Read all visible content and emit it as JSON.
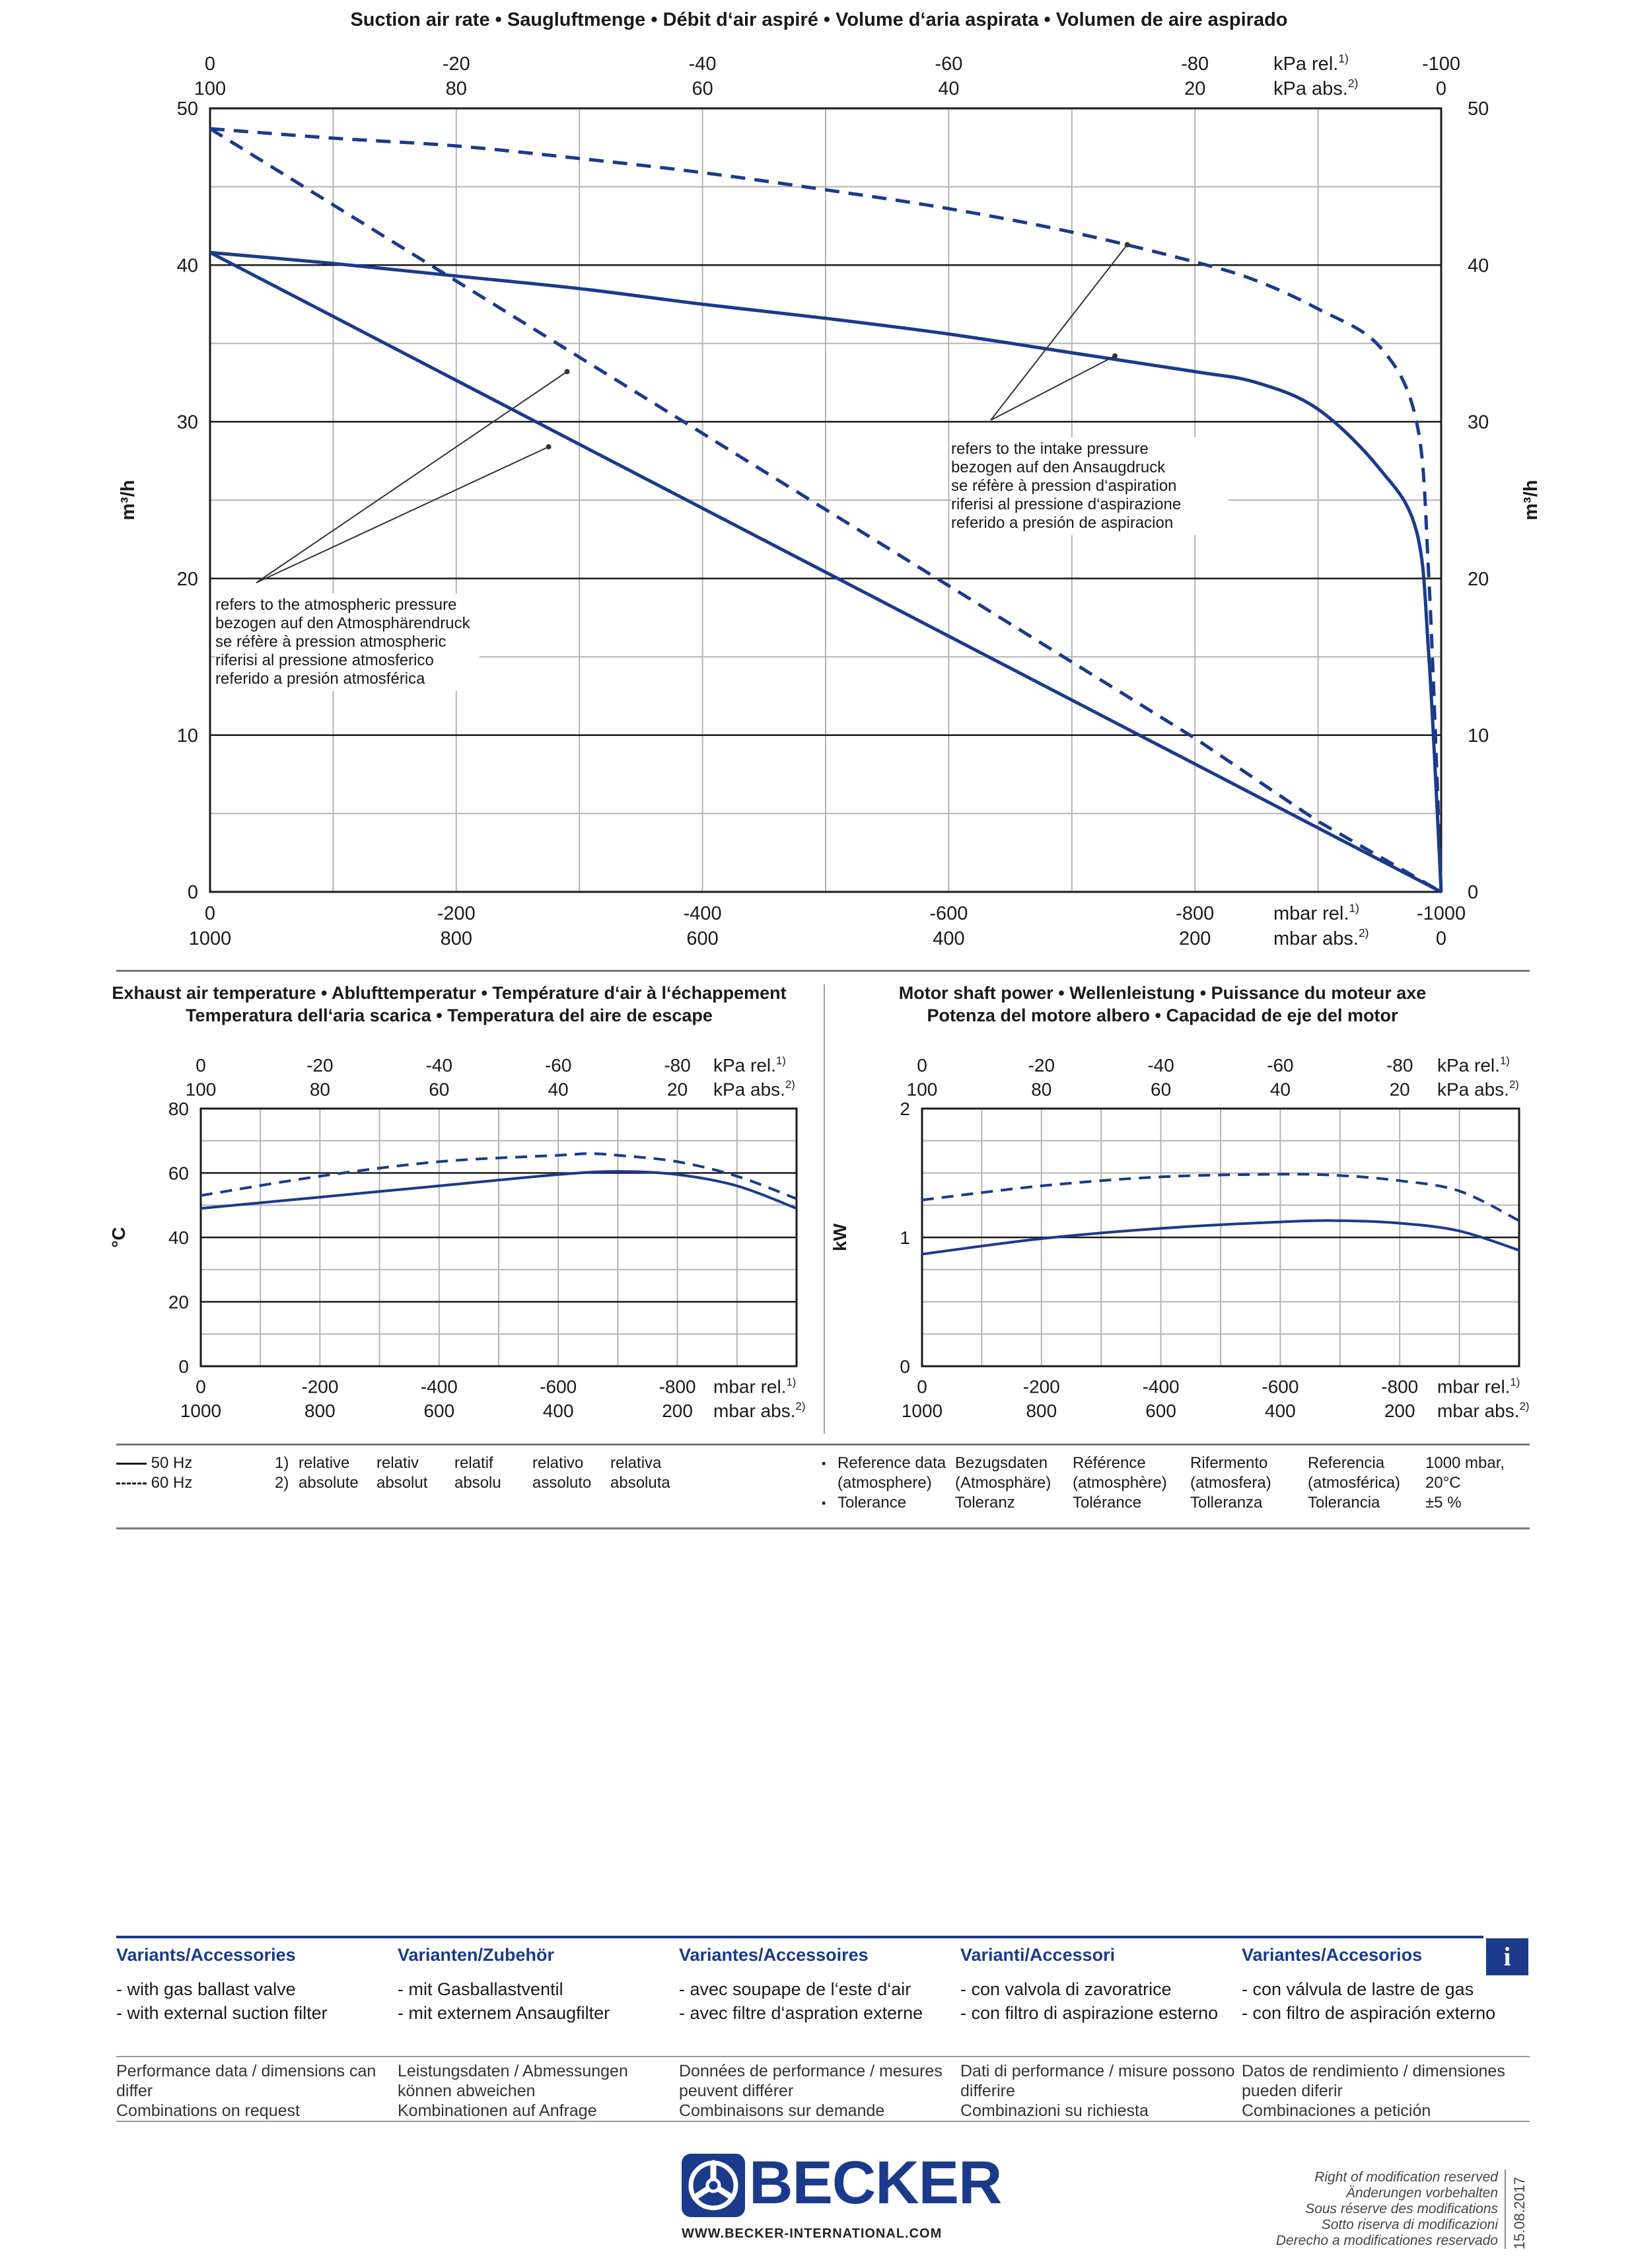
{
  "title": "Suction air rate  •  Saugluftmenge  •  Débit d‘air aspiré  •  Volume d‘aria aspirata  •  Volumen de aire aspirado",
  "main_chart": {
    "top_rel_ticks": [
      "0",
      "-20",
      "-40",
      "-60",
      "-80",
      "-100"
    ],
    "top_abs_ticks": [
      "100",
      "80",
      "60",
      "40",
      "20",
      "0"
    ],
    "top_rel_unit": "kPa rel.",
    "top_rel_sup": "1)",
    "top_abs_unit": "kPa abs.",
    "top_abs_sup": "2)",
    "bottom_rel_ticks": [
      "0",
      "-200",
      "-400",
      "-600",
      "-800",
      "-1000"
    ],
    "bottom_abs_ticks": [
      "1000",
      "800",
      "600",
      "400",
      "200",
      "0"
    ],
    "bottom_rel_unit": "mbar rel.",
    "bottom_abs_unit": "mbar abs.",
    "y_ticks": [
      "0",
      "10",
      "20",
      "30",
      "40",
      "50"
    ],
    "ylabel": "m³/h",
    "annotation_atmospheric": [
      "refers to the atmospheric pressure",
      "bezogen auf den Atmosphärendruck",
      "se réfère à pression atmospheric",
      "riferisi al pressione atmosferico",
      "referido a presión atmosférica"
    ],
    "annotation_intake": [
      "refers to the intake pressure",
      "bezogen auf den Ansaugdruck",
      "se réfère à pression d‘aspiration",
      "riferisi al pressione d‘aspirazione",
      "referido a presión de aspiracion"
    ]
  },
  "temp_chart": {
    "title_line1": "Exhaust air temperature  •  Ablufttemperatur  •  Température d‘air à l‘échappement",
    "title_line2": "Temperatura dell‘aria scarica  •  Temperatura del aire de escape",
    "top_rel_ticks": [
      "0",
      "-20",
      "-40",
      "-60",
      "-80"
    ],
    "top_abs_ticks": [
      "100",
      "80",
      "60",
      "40",
      "20"
    ],
    "top_rel_unit": "kPa rel.",
    "top_abs_unit": "kPa abs.",
    "bottom_rel_ticks": [
      "0",
      "-200",
      "-400",
      "-600",
      "-800"
    ],
    "bottom_abs_ticks": [
      "1000",
      "800",
      "600",
      "400",
      "200"
    ],
    "bottom_rel_unit": "mbar rel.",
    "bottom_abs_unit": "mbar abs.",
    "y_ticks": [
      "0",
      "20",
      "40",
      "60",
      "80"
    ],
    "ylabel": "°C"
  },
  "power_chart": {
    "title_line1": "Motor shaft power  •  Wellenleistung  •  Puissance du moteur axe",
    "title_line2": "Potenza del motore albero  •  Capacidad de eje del motor",
    "top_rel_ticks": [
      "0",
      "-20",
      "-40",
      "-60",
      "-80"
    ],
    "top_abs_ticks": [
      "100",
      "80",
      "60",
      "40",
      "20"
    ],
    "top_rel_unit": "kPa rel.",
    "top_abs_unit": "kPa abs.",
    "bottom_rel_ticks": [
      "0",
      "-200",
      "-400",
      "-600",
      "-800"
    ],
    "bottom_abs_ticks": [
      "1000",
      "800",
      "600",
      "400",
      "200"
    ],
    "bottom_rel_unit": "mbar rel.",
    "bottom_abs_unit": "mbar abs.",
    "y_ticks": [
      "0",
      "1",
      "2"
    ],
    "ylabel": "kW"
  },
  "chart_data": [
    {
      "type": "line",
      "title": "Suction air rate  •  Saugluftmenge  •  Débit d‘air aspiré  •  Volume d‘aria aspirata  •  Volumen de aire aspirado",
      "xlabel": "mbar rel.",
      "ylabel": "m³/h",
      "xlim": [
        0,
        -1000
      ],
      "ylim": [
        0,
        50
      ],
      "grid": true,
      "series": [
        {
          "name": "50 Hz",
          "style": "solid",
          "x": [
            0,
            -100,
            -200,
            -300,
            -400,
            -500,
            -600,
            -700,
            -800,
            -850,
            -900,
            -950,
            -980,
            -990,
            -1000
          ],
          "y": [
            40.8,
            40.1,
            39.3,
            38.5,
            37.5,
            36.6,
            35.6,
            34.4,
            33.2,
            32.5,
            30.8,
            27.0,
            23.0,
            15.0,
            0
          ]
        },
        {
          "name": "60 Hz",
          "style": "dashed",
          "x": [
            0,
            -100,
            -200,
            -300,
            -400,
            -500,
            -600,
            -700,
            -800,
            -850,
            -900,
            -950,
            -980,
            -990,
            -1000
          ],
          "y": [
            48.7,
            48.1,
            47.6,
            46.8,
            45.9,
            44.8,
            43.6,
            42.1,
            40.2,
            39.0,
            37.2,
            34.8,
            30.0,
            20.0,
            0
          ]
        },
        {
          "name": "50 Hz",
          "style": "solid",
          "x": [
            0,
            -1000
          ],
          "y": [
            40.8,
            0
          ]
        },
        {
          "name": "60 Hz",
          "style": "dashed",
          "x": [
            0,
            -500,
            -800,
            -900,
            -1000
          ],
          "y": [
            48.7,
            24.4,
            9.8,
            4.5,
            0
          ]
        }
      ]
    },
    {
      "type": "line",
      "title": "Exhaust air temperature  •  Ablufttemperatur  •  Température d‘air à l‘échappement",
      "xlabel": "mbar rel.",
      "ylabel": "°C",
      "xlim": [
        0,
        -1000
      ],
      "ylim": [
        0,
        80
      ],
      "grid": true,
      "series": [
        {
          "name": "50 Hz",
          "style": "solid",
          "x": [
            0,
            -200,
            -400,
            -600,
            -700,
            -800,
            -900,
            -1000
          ],
          "y": [
            49,
            52.5,
            56,
            59.5,
            60.5,
            59.5,
            56,
            49
          ]
        },
        {
          "name": "60 Hz",
          "style": "dashed",
          "x": [
            0,
            -200,
            -400,
            -600,
            -650,
            -700,
            -800,
            -900,
            -1000
          ],
          "y": [
            53,
            59,
            63.5,
            65.5,
            66,
            65.5,
            63.5,
            59,
            52
          ]
        }
      ]
    },
    {
      "type": "line",
      "title": "Motor shaft power  •  Wellenleistung  •  Puissance du moteur axe",
      "xlabel": "mbar rel.",
      "ylabel": "kW",
      "xlim": [
        0,
        -1000
      ],
      "ylim": [
        0,
        2
      ],
      "grid": true,
      "series": [
        {
          "name": "50 Hz",
          "style": "solid",
          "x": [
            0,
            -200,
            -400,
            -600,
            -700,
            -800,
            -900,
            -1000
          ],
          "y": [
            0.87,
            0.99,
            1.07,
            1.12,
            1.13,
            1.11,
            1.05,
            0.9
          ]
        },
        {
          "name": "60 Hz",
          "style": "dashed",
          "x": [
            0,
            -200,
            -400,
            -600,
            -700,
            -800,
            -900,
            -1000
          ],
          "y": [
            1.29,
            1.4,
            1.47,
            1.49,
            1.48,
            1.44,
            1.36,
            1.13
          ]
        }
      ]
    }
  ],
  "legend": {
    "hz50": "50 Hz",
    "hz60": "60 Hz",
    "fn1_num": "1)",
    "fn2_num": "2)",
    "fn1": [
      "relative",
      "relativ",
      "relatif",
      "relativo",
      "relativa"
    ],
    "fn2": [
      "absolute",
      "absolut",
      "absolu",
      "assoluto",
      "absoluta"
    ]
  },
  "reference": {
    "bullet": "▪",
    "ref_cols": [
      [
        "Reference data",
        "(atmosphere)"
      ],
      [
        "Bezugsdaten",
        "(Atmosphäre)"
      ],
      [
        "Référence",
        "(atmosphère)"
      ],
      [
        "Rifermento",
        "(atmosfera)"
      ],
      [
        "Referencia",
        "(atmosférica)"
      ],
      [
        "1000 mbar,",
        "20°C"
      ]
    ],
    "tol": [
      "Tolerance",
      "Toleranz",
      "Tolérance",
      "Tolleranza",
      "Tolerancia",
      "±5 %"
    ]
  },
  "variants": {
    "columns": [
      {
        "head": "Variants/Accessories",
        "items": [
          "- with gas ballast valve",
          "- with external suction filter"
        ],
        "info": [
          "Performance data / dimensions can",
          "differ",
          "Combinations on request"
        ]
      },
      {
        "head": "Varianten/Zubehör",
        "items": [
          "- mit Gasballastventil",
          "- mit externem Ansaugfilter"
        ],
        "info": [
          "Leistungsdaten / Abmessungen",
          "können abweichen",
          "Kombinationen auf Anfrage"
        ]
      },
      {
        "head": "Variantes/Accessoires",
        "items": [
          "- avec soupape de l‘este d‘air",
          "- avec filtre d‘aspration externe"
        ],
        "info": [
          "Données de performance / mesures",
          "peuvent différer",
          "Combinaisons sur demande"
        ]
      },
      {
        "head": "Varianti/Accessori",
        "items": [
          "- con valvola di zavoratrice",
          "- con filtro di aspirazione esterno"
        ],
        "info": [
          "Dati di performance / misure possono",
          "differire",
          "Combinazioni su richiesta"
        ]
      },
      {
        "head": "Variantes/Accesorios",
        "items": [
          "- con válvula de lastre de gas",
          "- con filtro de aspiración externo"
        ],
        "info": [
          "Datos de rendimiento / dimensiones",
          "pueden diferir",
          "Combinaciones a petición"
        ]
      }
    ],
    "info_badge": "i"
  },
  "footer": {
    "brand": "BECKER",
    "url": "WWW.BECKER-INTERNATIONAL.COM",
    "rights": [
      "Right of modification reserved",
      "Änderungen vorbehalten",
      "Sous réserve des modifications",
      "Sotto riserva di modificazioni",
      "Derecho a modificationes reservado"
    ],
    "date": "15.08.2017"
  },
  "colors": {
    "curve": "#1b3a8c",
    "grid": "#1a1a1a",
    "minor_grid": "#b5b5b5",
    "rule": "#8a8a8a"
  }
}
